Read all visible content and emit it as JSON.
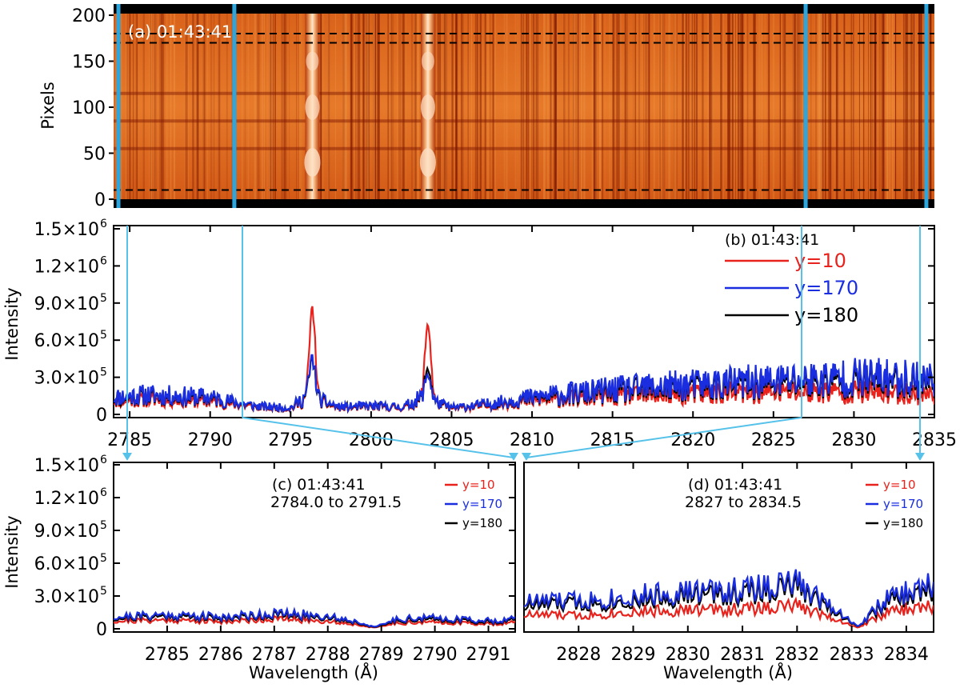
{
  "chart_data": [
    {
      "panel": "a",
      "type": "heatmap",
      "annotation": "(a) 01:43:41",
      "ylabel": "Pixels",
      "xlim": [
        2784,
        2835
      ],
      "ylim": [
        0,
        200
      ],
      "yticks": [
        "0",
        "50",
        "100",
        "150",
        "200"
      ],
      "colormap": [
        "#000000",
        "#7a1500",
        "#b83300",
        "#df6010",
        "#f39a48",
        "#fde0c4"
      ],
      "bright_lines": [
        2796.35,
        2803.53
      ],
      "dark_rows": [
        55,
        85,
        115
      ],
      "dashed_rows": [
        10,
        170,
        180
      ],
      "highlight_columns": [
        2784.3,
        2791.5,
        2827,
        2834.5
      ],
      "highlight_color": "#2ca6dc"
    },
    {
      "panel": "b",
      "type": "line",
      "annotation": "(b) 01:43:41",
      "ylabel": "Intensity",
      "xlim": [
        2784,
        2835
      ],
      "ylim": [
        0,
        1500000
      ],
      "xticks": [
        "2785",
        "2790",
        "2795",
        "2800",
        "2805",
        "2810",
        "2815",
        "2820",
        "2825",
        "2830",
        "2835"
      ],
      "ytick_values": [
        0,
        300000,
        600000,
        900000,
        1200000,
        1500000
      ],
      "ytick_mantissa": [
        "0",
        "3.0×10",
        "6.0×10",
        "9.0×10",
        "1.2×10",
        "1.5×10"
      ],
      "ytick_exponent": [
        "",
        "5",
        "5",
        "5",
        "6",
        "6"
      ],
      "series": [
        {
          "name": "y=10",
          "color": "#e8221c",
          "peaks": [
            {
              "x": 2796.35,
              "y": 850000
            },
            {
              "x": 2803.53,
              "y": 740000
            }
          ],
          "x": [
            2784,
            2786,
            2788,
            2790,
            2791.5,
            2793,
            2795,
            2796,
            2797,
            2798,
            2800,
            2802,
            2803,
            2804,
            2805,
            2807,
            2810,
            2815,
            2820,
            2825,
            2830,
            2835
          ],
          "y": [
            110000,
            120000,
            115000,
            105000,
            80000,
            55000,
            45000,
            120000,
            90000,
            50000,
            60000,
            50000,
            110000,
            90000,
            45000,
            65000,
            110000,
            140000,
            160000,
            180000,
            180000,
            160000
          ]
        },
        {
          "name": "y=170",
          "color": "#1a2ee0",
          "peaks": [
            {
              "x": 2796.35,
              "y": 450000
            },
            {
              "x": 2803.53,
              "y": 330000
            }
          ],
          "x": [
            2784,
            2786,
            2788,
            2790,
            2791.5,
            2793,
            2795,
            2796,
            2797,
            2798,
            2800,
            2802,
            2803,
            2804,
            2805,
            2807,
            2810,
            2815,
            2820,
            2825,
            2830,
            2835
          ],
          "y": [
            140000,
            160000,
            150000,
            140000,
            100000,
            65000,
            55000,
            150000,
            110000,
            60000,
            70000,
            60000,
            130000,
            100000,
            55000,
            80000,
            140000,
            200000,
            240000,
            270000,
            300000,
            290000
          ]
        },
        {
          "name": "y=180",
          "color": "#000000",
          "peaks": [
            {
              "x": 2796.35,
              "y": 440000
            },
            {
              "x": 2803.53,
              "y": 380000
            }
          ],
          "x": [
            2784,
            2786,
            2788,
            2790,
            2791.5,
            2793,
            2795,
            2796,
            2797,
            2798,
            2800,
            2802,
            2803,
            2804,
            2805,
            2807,
            2810,
            2815,
            2820,
            2825,
            2830,
            2835
          ],
          "y": [
            130000,
            150000,
            140000,
            130000,
            95000,
            62000,
            52000,
            140000,
            100000,
            58000,
            66000,
            58000,
            120000,
            95000,
            52000,
            76000,
            130000,
            180000,
            220000,
            250000,
            270000,
            260000
          ]
        }
      ]
    },
    {
      "panel": "c",
      "type": "line",
      "annotation": [
        "(c) 01:43:41",
        "2784.0 to 2791.5"
      ],
      "xlabel": "Wavelength (Å)",
      "ylabel": "Intensity",
      "xlim": [
        2784,
        2791.5
      ],
      "ylim": [
        0,
        1500000
      ],
      "xticks": [
        "2785",
        "2786",
        "2787",
        "2788",
        "2789",
        "2790",
        "2791"
      ],
      "series": [
        {
          "name": "y=10",
          "color": "#e8221c",
          "x": [
            2784,
            2785,
            2786,
            2787,
            2788,
            2788.5,
            2788.9,
            2789.3,
            2790,
            2791,
            2791.5
          ],
          "y": [
            70000,
            80000,
            65000,
            90000,
            70000,
            40000,
            10000,
            55000,
            60000,
            45000,
            55000
          ]
        },
        {
          "name": "y=170",
          "color": "#1a2ee0",
          "x": [
            2784,
            2785,
            2786,
            2787,
            2788,
            2788.5,
            2788.9,
            2789.3,
            2790,
            2791,
            2791.5
          ],
          "y": [
            110000,
            130000,
            110000,
            140000,
            120000,
            70000,
            15000,
            95000,
            100000,
            75000,
            90000
          ]
        },
        {
          "name": "y=180",
          "color": "#000000",
          "x": [
            2784,
            2785,
            2786,
            2787,
            2788,
            2788.5,
            2788.9,
            2789.3,
            2790,
            2791,
            2791.5
          ],
          "y": [
            95000,
            115000,
            95000,
            125000,
            105000,
            60000,
            12000,
            80000,
            85000,
            62000,
            78000
          ]
        }
      ]
    },
    {
      "panel": "d",
      "type": "line",
      "annotation": [
        "(d) 01:43:41",
        "2827 to 2834.5"
      ],
      "xlabel": "Wavelength (Å)",
      "xlim": [
        2827,
        2834.5
      ],
      "ylim": [
        0,
        1500000
      ],
      "xticks": [
        "2828",
        "2829",
        "2830",
        "2831",
        "2832",
        "2833",
        "2834"
      ],
      "series": [
        {
          "name": "y=10",
          "color": "#e8221c",
          "x": [
            2827,
            2828,
            2829,
            2830,
            2831,
            2832,
            2832.6,
            2833.1,
            2833.6,
            2834,
            2834.5
          ],
          "y": [
            130000,
            120000,
            160000,
            170000,
            180000,
            210000,
            110000,
            10000,
            140000,
            180000,
            200000
          ]
        },
        {
          "name": "y=170",
          "color": "#1a2ee0",
          "x": [
            2827,
            2828,
            2829,
            2830,
            2831,
            2832,
            2832.6,
            2833.1,
            2833.6,
            2834,
            2834.5
          ],
          "y": [
            250000,
            260000,
            300000,
            340000,
            360000,
            420000,
            230000,
            20000,
            260000,
            330000,
            400000
          ]
        },
        {
          "name": "y=180",
          "color": "#000000",
          "x": [
            2827,
            2828,
            2829,
            2830,
            2831,
            2832,
            2832.6,
            2833.1,
            2833.6,
            2834,
            2834.5
          ],
          "y": [
            210000,
            230000,
            260000,
            300000,
            320000,
            380000,
            200000,
            18000,
            230000,
            290000,
            350000
          ]
        }
      ]
    }
  ],
  "connector_color": "#56c2ea"
}
